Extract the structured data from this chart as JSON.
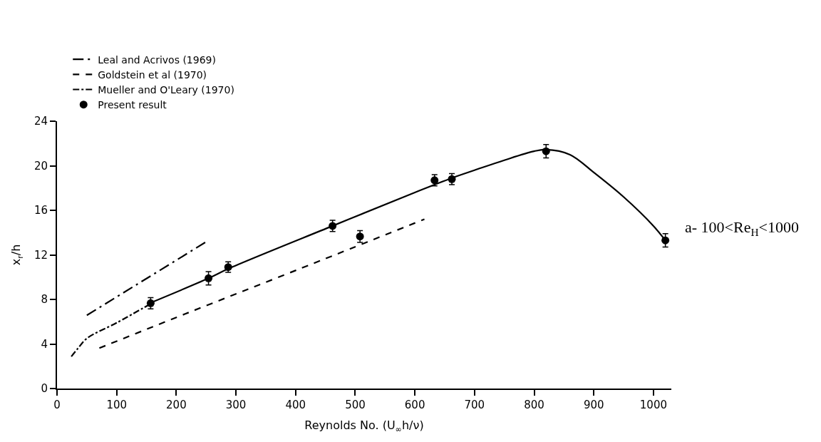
{
  "chart_data": {
    "type": "line",
    "xlabel": "Reynolds No. (U$_{∞}$h/ν)",
    "ylabel": "x$_{r}$/h",
    "xlim": [
      0,
      1030
    ],
    "xticks": [
      0,
      100,
      200,
      300,
      400,
      500,
      600,
      700,
      800,
      900,
      1000
    ],
    "ylim": [
      0,
      24
    ],
    "yticks": [
      0,
      4,
      8,
      12,
      16,
      20,
      24
    ],
    "grid": false,
    "legend": "top left",
    "series": [
      {
        "name": "Leal and Acrivos (1969)",
        "color": "#000000",
        "line_style": "dashdotdot",
        "x": [
          50,
          251
        ],
        "values": [
          6.58,
          13.2
        ]
      },
      {
        "name": "Goldstein et al (1970)",
        "color": "#000000",
        "line_style": "dashed",
        "x": [
          71,
          215,
          400,
          616
        ],
        "values": [
          3.63,
          6.7,
          10.6,
          15.2
        ]
      },
      {
        "name": "Mueller and O'Leary (1970)",
        "color": "#000000",
        "line_style": "dashdot",
        "x": [
          24,
          35,
          50,
          100,
          160
        ],
        "values": [
          2.87,
          3.6,
          4.5,
          5.9,
          7.7
        ]
      },
      {
        "name": "Present result",
        "type": "scatter",
        "marker": "circle",
        "color": "#000000",
        "x": [
          157,
          254,
          287,
          462,
          508,
          633,
          662,
          820,
          1020
        ],
        "values": [
          7.66,
          9.9,
          10.9,
          14.6,
          13.65,
          18.7,
          18.8,
          21.3,
          13.3
        ],
        "errors": [
          0.5,
          0.6,
          0.47,
          0.5,
          0.53,
          0.5,
          0.5,
          0.6,
          0.6
        ]
      },
      {
        "color": "#000000",
        "line_style": "solid",
        "x": [
          157,
          254,
          287,
          462,
          600,
          662,
          700,
          750,
          800,
          820,
          860,
          900,
          950,
          1000,
          1020
        ],
        "values": [
          7.7,
          9.9,
          10.75,
          14.6,
          17.6,
          18.9,
          19.6,
          20.5,
          21.3,
          21.45,
          21.0,
          19.4,
          17.2,
          14.6,
          13.3
        ]
      }
    ],
    "annotations": [
      {
        "text": "a- 100<Re$_{H}$<1000"
      }
    ]
  }
}
